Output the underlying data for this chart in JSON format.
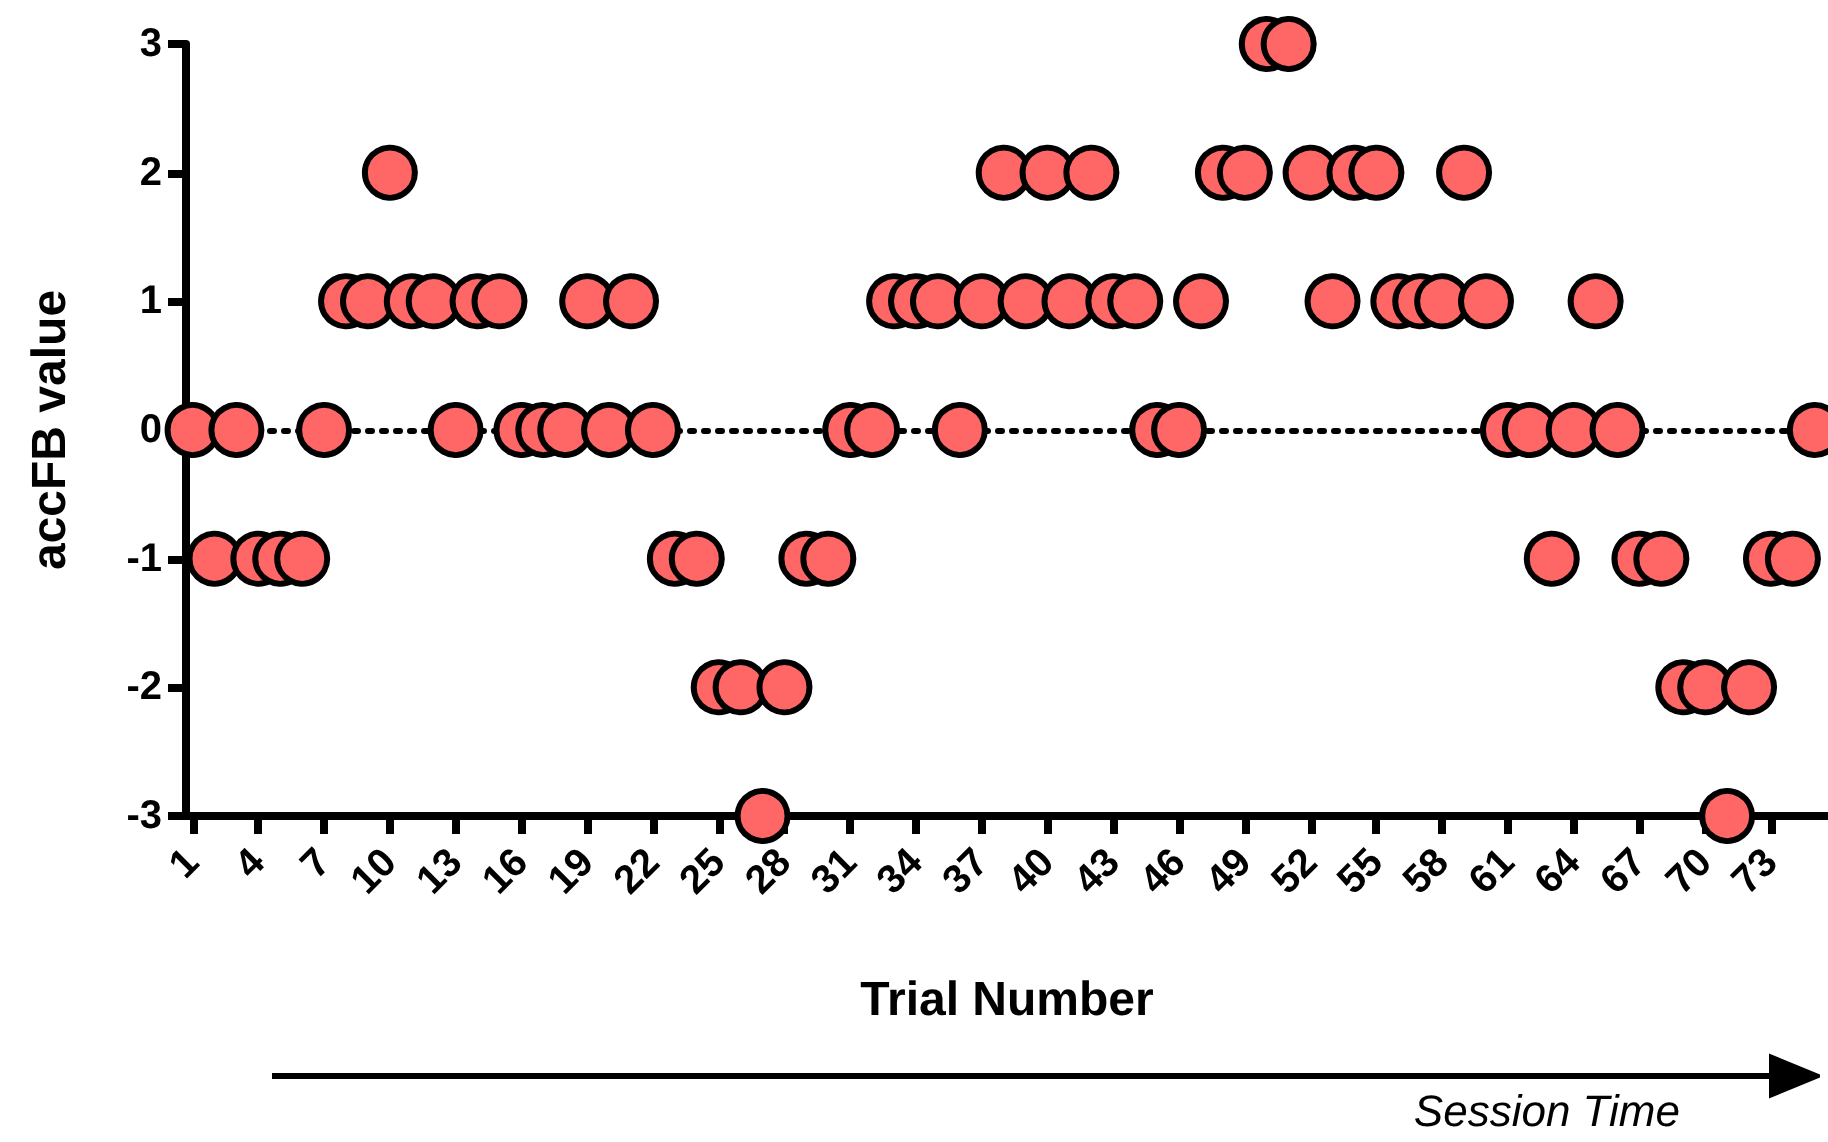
{
  "chart_data": {
    "type": "scatter",
    "xlabel": "Trial Number",
    "ylabel": "accFB value",
    "x": [
      1,
      2,
      3,
      4,
      5,
      6,
      7,
      8,
      9,
      10,
      11,
      12,
      13,
      14,
      15,
      16,
      17,
      18,
      19,
      20,
      21,
      22,
      23,
      24,
      25,
      26,
      27,
      28,
      29,
      30,
      31,
      32,
      33,
      34,
      35,
      36,
      37,
      38,
      39,
      40,
      41,
      42,
      43,
      44,
      45,
      46,
      47,
      48,
      49,
      50,
      51,
      52,
      53,
      54,
      55,
      56,
      57,
      58,
      59,
      60,
      61,
      62,
      63,
      64,
      65,
      66,
      67,
      68,
      69,
      70,
      71,
      72,
      73,
      74,
      75
    ],
    "values": [
      0,
      -1,
      0,
      -1,
      -1,
      -1,
      0,
      1,
      1,
      2,
      1,
      1,
      0,
      1,
      1,
      0,
      0,
      0,
      1,
      0,
      1,
      0,
      -1,
      -1,
      -2,
      -2,
      -3,
      -2,
      -1,
      -1,
      0,
      0,
      1,
      1,
      1,
      0,
      1,
      2,
      1,
      2,
      1,
      2,
      1,
      1,
      0,
      0,
      1,
      2,
      2,
      3,
      3,
      2,
      1,
      2,
      2,
      1,
      1,
      1,
      2,
      1,
      0,
      0,
      -1,
      0,
      1,
      0,
      -1,
      -1,
      -2,
      -2,
      -3,
      -2,
      -1,
      -1,
      0
    ],
    "color": "#ff6666",
    "marker": "circle",
    "xlim": [
      0.7,
      75.6
    ],
    "xticks": [
      1,
      4,
      7,
      10,
      13,
      16,
      19,
      22,
      25,
      28,
      31,
      34,
      37,
      40,
      43,
      46,
      49,
      52,
      55,
      58,
      61,
      64,
      67,
      70,
      73
    ],
    "ylim": [
      -3,
      3
    ],
    "yticks": [
      -3,
      -2,
      -1,
      0,
      1,
      2,
      3
    ],
    "ref_lines": [
      {
        "axis": "y",
        "value": 0,
        "color": "#000000",
        "line_style": "dotted"
      }
    ],
    "annotations": [
      "Session Time"
    ]
  }
}
